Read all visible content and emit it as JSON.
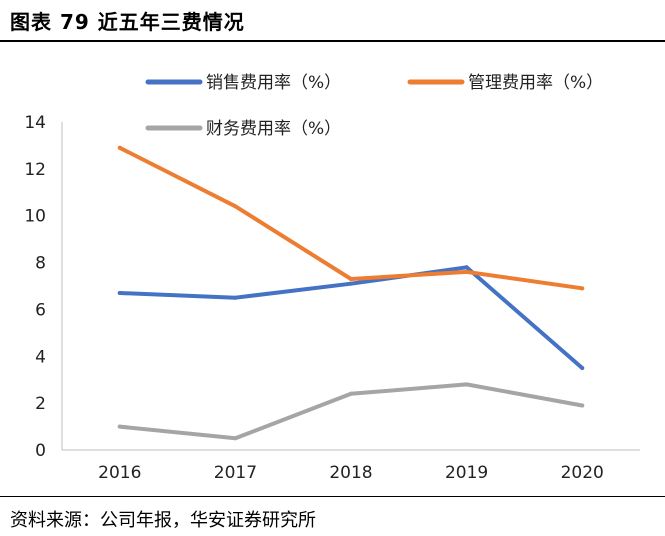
{
  "figure": {
    "title": "图表 79 近五年三费情况",
    "source": "资料来源：公司年报，华安证券研究所"
  },
  "chart_data": {
    "type": "line",
    "title": "",
    "xlabel": "",
    "ylabel": "",
    "x": [
      "2016",
      "2017",
      "2018",
      "2019",
      "2020"
    ],
    "ylim": [
      0,
      14
    ],
    "yticks": [
      0,
      2,
      4,
      6,
      8,
      10,
      12,
      14
    ],
    "grid": false,
    "legend_position": "top",
    "series": [
      {
        "name": "销售费用率（%）",
        "color": "#4472C4",
        "values": [
          6.7,
          6.5,
          7.1,
          7.8,
          3.5
        ]
      },
      {
        "name": "管理费用率（%）",
        "color": "#ED7D31",
        "values": [
          12.9,
          10.4,
          7.3,
          7.6,
          6.9
        ]
      },
      {
        "name": "财务费用率（%）",
        "color": "#A5A5A5",
        "values": [
          1.0,
          0.5,
          2.4,
          2.8,
          1.9
        ]
      }
    ]
  }
}
